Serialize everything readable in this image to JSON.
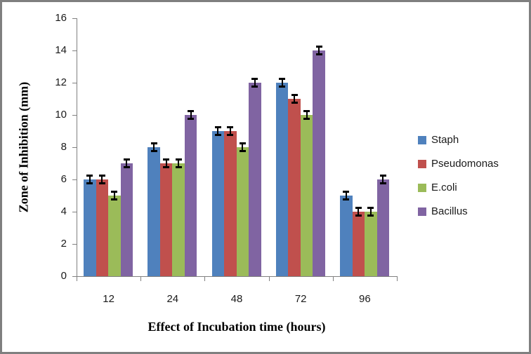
{
  "frame": {
    "border_color": "#7F7F7F",
    "background_color": "#FFFFFF"
  },
  "chart_data": {
    "type": "bar",
    "title": "",
    "xlabel": "Effect of Incubation time (hours)",
    "ylabel": "Zone of Inhibition (mm)",
    "categories": [
      "12",
      "24",
      "48",
      "72",
      "96"
    ],
    "series": [
      {
        "name": "Staph",
        "color": "#4F81BD",
        "values": [
          6,
          8,
          9,
          12,
          5
        ]
      },
      {
        "name": "Pseudomonas",
        "color": "#C0504D",
        "values": [
          6,
          7,
          9,
          11,
          4
        ]
      },
      {
        "name": "E.coli",
        "color": "#9BBB59",
        "values": [
          5,
          7,
          8,
          10,
          4
        ]
      },
      {
        "name": "Bacillus",
        "color": "#8064A2",
        "values": [
          7,
          10,
          12,
          14,
          6
        ]
      }
    ],
    "error_bar": {
      "plus_minus": 0.25,
      "color": "#000000"
    },
    "ylim": [
      0,
      16
    ],
    "yticks": [
      0,
      2,
      4,
      6,
      8,
      10,
      12,
      14,
      16
    ],
    "grid": false,
    "legend_position": "right",
    "axis_color": "#808080",
    "tick_label_color": "#1A1A1A"
  }
}
